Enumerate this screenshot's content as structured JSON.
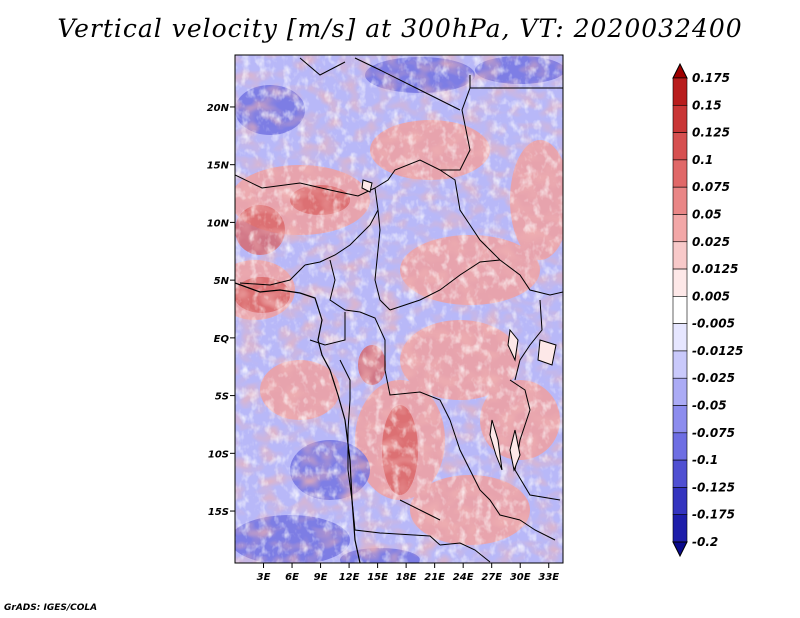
{
  "title": "Vertical velocity [m/s] at 300hPa, VT: 2020032400",
  "credit": "GrADS: IGES/COLA",
  "map": {
    "lat_ticks": [
      "20N",
      "15N",
      "10N",
      "5N",
      "EQ",
      "5S",
      "10S",
      "15S"
    ],
    "lon_ticks": [
      "3E",
      "6E",
      "9E",
      "12E",
      "15E",
      "18E",
      "21E",
      "24E",
      "27E",
      "30E",
      "33E"
    ],
    "region": "Central Africa"
  },
  "colorbar": {
    "labels": [
      "0.175",
      "0.15",
      "0.125",
      "0.1",
      "0.075",
      "0.05",
      "0.025",
      "0.0125",
      "0.005",
      "-0.005",
      "-0.0125",
      "-0.025",
      "-0.05",
      "-0.075",
      "-0.1",
      "-0.125",
      "-0.175",
      "-0.2"
    ],
    "colors": [
      "#9e0000",
      "#b81d1d",
      "#c93636",
      "#d65050",
      "#e06868",
      "#e98686",
      "#f2a7a7",
      "#f8c9c9",
      "#fde8e8",
      "#ffffff",
      "#e6e6ff",
      "#c9c9fb",
      "#ababf5",
      "#8c8cee",
      "#6e6ee3",
      "#5050d2",
      "#3434bf",
      "#1e1eaa",
      "#0a0a8c"
    ]
  },
  "chart_data": {
    "type": "heatmap",
    "title": "Vertical velocity [m/s] at 300hPa, VT: 2020032400",
    "variable": "Vertical velocity",
    "units": "m/s",
    "level": "300hPa",
    "valid_time": "2020032400",
    "x_ticks": [
      "3E",
      "6E",
      "9E",
      "12E",
      "15E",
      "18E",
      "21E",
      "24E",
      "27E",
      "30E",
      "33E"
    ],
    "y_ticks": [
      "20N",
      "15N",
      "10N",
      "5N",
      "EQ",
      "5S",
      "10S",
      "15S"
    ],
    "xlim": [
      0,
      34.5
    ],
    "ylim": [
      -19.5,
      24.5
    ],
    "contour_levels": [
      -0.2,
      -0.175,
      -0.125,
      -0.1,
      -0.075,
      -0.05,
      -0.025,
      -0.0125,
      -0.005,
      0.005,
      0.0125,
      0.025,
      0.05,
      0.075,
      0.1,
      0.125,
      0.15,
      0.175
    ]
  }
}
